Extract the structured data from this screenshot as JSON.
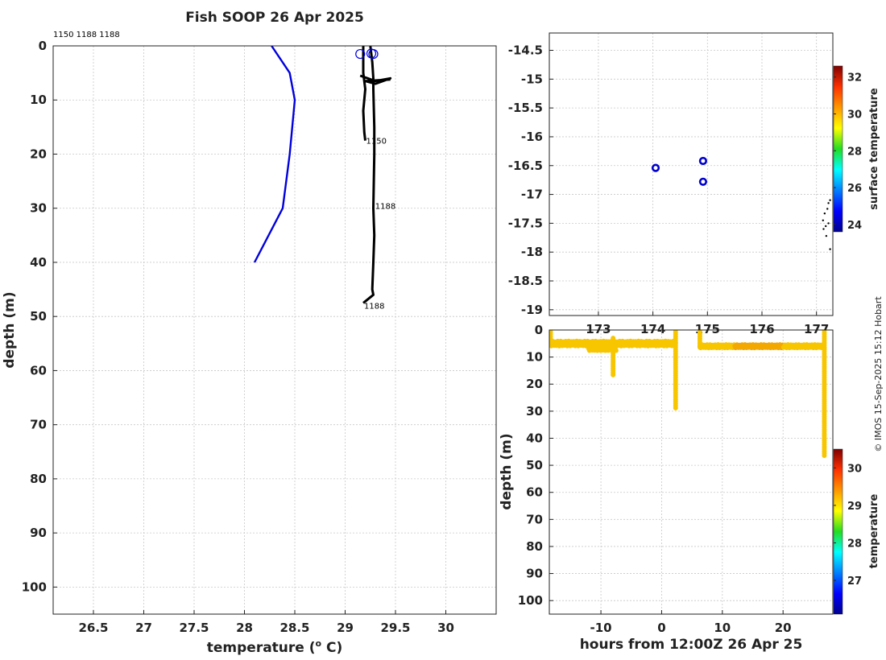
{
  "title": "Fish SOOP 26 Apr 2025",
  "copyright": "© IMOS 15-Sep-2025 15:12 Hobart",
  "chart_data": [
    {
      "type": "line",
      "title": "Fish SOOP 26 Apr 2025",
      "xlabel": "temperature (",
      "xlabel_sup": "o",
      "xlabel_tail": " C)",
      "ylabel": "depth (m)",
      "xlim": [
        26.1,
        30.5
      ],
      "ylim": [
        0,
        105
      ],
      "y_reversed": true,
      "grid": true,
      "x_ticks": [
        26.5,
        27,
        27.5,
        28,
        28.5,
        29,
        29.5,
        30
      ],
      "y_ticks": [
        0,
        10,
        20,
        30,
        40,
        50,
        60,
        70,
        80,
        90,
        100
      ],
      "top_label": "1150 1188 1188",
      "series": [
        {
          "color": "#0000dd",
          "x": [
            28.27,
            28.45,
            28.5,
            28.45,
            28.38,
            28.1
          ],
          "y": [
            0,
            5,
            10,
            20,
            30,
            40
          ]
        },
        {
          "color": "#000000",
          "x": [
            29.18,
            29.18,
            29.2,
            29.18,
            29.19,
            29.2
          ],
          "y": [
            0,
            5,
            8,
            12,
            16,
            17.5
          ]
        },
        {
          "color": "#000000",
          "x": [
            29.25,
            29.27,
            29.28,
            29.28,
            29.29,
            29.29,
            29.28,
            29.29,
            29.28,
            29.27,
            29.28,
            29.18
          ],
          "y": [
            0,
            3,
            6,
            8,
            15,
            20,
            30,
            35,
            40,
            45,
            46,
            47.5
          ]
        },
        {
          "color": "#000000",
          "x": [
            29.15,
            29.3,
            29.45,
            29.3,
            29.2,
            29.45
          ],
          "y": [
            5.5,
            6.5,
            6,
            7,
            6.5,
            6.2
          ]
        }
      ],
      "surface_markers": [
        {
          "x": 29.15,
          "y": 1.5
        },
        {
          "x": 29.26,
          "y": 1.4
        },
        {
          "x": 29.28,
          "y": 1.5
        }
      ],
      "profile_labels": [
        {
          "text": "1150",
          "x": 29.2,
          "y": 17.5
        },
        {
          "text": "1188",
          "x": 29.29,
          "y": 29.5
        },
        {
          "text": "1188",
          "x": 29.18,
          "y": 48
        }
      ]
    },
    {
      "type": "scatter",
      "xlim": [
        172.1,
        177.3
      ],
      "ylim": [
        -19.1,
        -14.2
      ],
      "grid": true,
      "x_ticks": [
        173,
        174,
        175,
        176,
        177
      ],
      "y_ticks": [
        -14.5,
        -15,
        -15.5,
        -16,
        -16.5,
        -17,
        -17.5,
        -18,
        -18.5,
        -19
      ],
      "colorbar_label": "surface temperature",
      "colorbar_ticks": [
        24,
        26,
        28,
        30,
        32
      ],
      "colorbar_range": [
        23.6,
        32.6
      ],
      "points": [
        {
          "x": 174.05,
          "y": -16.54
        },
        {
          "x": 174.92,
          "y": -16.42
        },
        {
          "x": 174.92,
          "y": -16.78
        }
      ],
      "coastline": [
        {
          "x": 177.25,
          "y": -17.1
        },
        {
          "x": 177.22,
          "y": -17.15
        },
        {
          "x": 177.2,
          "y": -17.25
        },
        {
          "x": 177.15,
          "y": -17.33
        },
        {
          "x": 177.12,
          "y": -17.45
        },
        {
          "x": 177.17,
          "y": -17.55
        },
        {
          "x": 177.13,
          "y": -17.6
        },
        {
          "x": 177.18,
          "y": -17.72
        },
        {
          "x": 177.22,
          "y": -17.5
        },
        {
          "x": 177.25,
          "y": -17.95
        }
      ]
    },
    {
      "type": "scatter",
      "xlabel": "hours from 12:00Z 26 Apr 25",
      "ylabel": "depth (m)",
      "xlim": [
        -18.5,
        28.2
      ],
      "ylim": [
        0,
        105
      ],
      "y_reversed": true,
      "grid": true,
      "x_ticks": [
        -10,
        0,
        10,
        20
      ],
      "y_ticks": [
        0,
        10,
        20,
        30,
        40,
        50,
        60,
        70,
        80,
        90,
        100
      ],
      "colorbar_label": "temperature",
      "colorbar_ticks": [
        27,
        28,
        29,
        30
      ],
      "colorbar_range": [
        26.1,
        30.5
      ],
      "point_color": "#f7c600",
      "warm_point_color": "#f2a800",
      "tracks": [
        {
          "x_start": -18.3,
          "x_end": 2.3,
          "depth": 5,
          "jitter": 1.5
        },
        {
          "x_start": 6.3,
          "x_end": 26.8,
          "depth": 6,
          "jitter": 1
        },
        {
          "x_start": -12,
          "x_end": -7.5,
          "depth": 7,
          "jitter": 1
        }
      ],
      "casts": [
        {
          "x": -18.3,
          "from": 0,
          "to": 5
        },
        {
          "x": -8,
          "from": 3,
          "to": 17
        },
        {
          "x": 2.3,
          "from": 0,
          "to": 29
        },
        {
          "x": 6.3,
          "from": 0,
          "to": 7
        },
        {
          "x": 26.8,
          "from": 0,
          "to": 47
        }
      ]
    }
  ]
}
